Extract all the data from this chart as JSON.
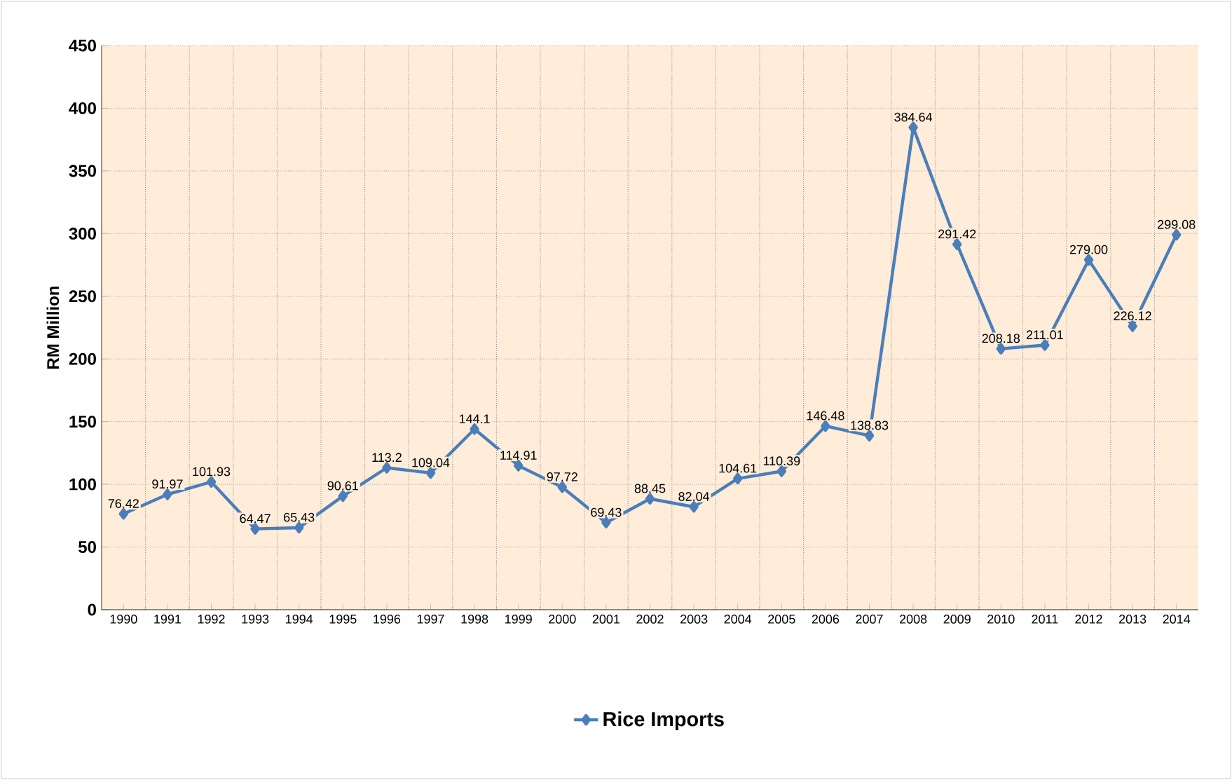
{
  "chart_data": {
    "type": "line",
    "ylabel": "RM Million",
    "categories": [
      "1990",
      "1991",
      "1992",
      "1993",
      "1994",
      "1995",
      "1996",
      "1997",
      "1998",
      "1999",
      "2000",
      "2001",
      "2002",
      "2003",
      "2004",
      "2005",
      "2006",
      "2007",
      "2008",
      "2009",
      "2010",
      "2011",
      "2012",
      "2013",
      "2014"
    ],
    "series": [
      {
        "name": "Rice Imports",
        "color": "#4a7ebb",
        "values": [
          76.42,
          91.97,
          101.93,
          64.47,
          65.43,
          90.61,
          113.2,
          109.04,
          144.1,
          114.91,
          97.72,
          69.43,
          88.45,
          82.04,
          104.61,
          110.39,
          146.48,
          138.83,
          384.64,
          291.42,
          208.18,
          211.01,
          279.0,
          226.12,
          299.08
        ],
        "value_labels": [
          "76.42",
          "91.97",
          "101.93",
          "64.47",
          "65.43",
          "90.61",
          "113.2",
          "109.04",
          "144.1",
          "114.91",
          "97.72",
          "69.43",
          "88.45",
          "82.04",
          "104.61",
          "110.39",
          "146.48",
          "138.83",
          "384.64",
          "291.42",
          "208.18",
          "211.01",
          "279.00",
          "226.12",
          "299.08"
        ]
      }
    ],
    "ylim": [
      0,
      450
    ],
    "yticks": [
      0,
      50,
      100,
      150,
      200,
      250,
      300,
      350,
      400,
      450
    ],
    "grid": true,
    "legend": "bottom",
    "marker": "diamond",
    "line_style": "solid"
  }
}
